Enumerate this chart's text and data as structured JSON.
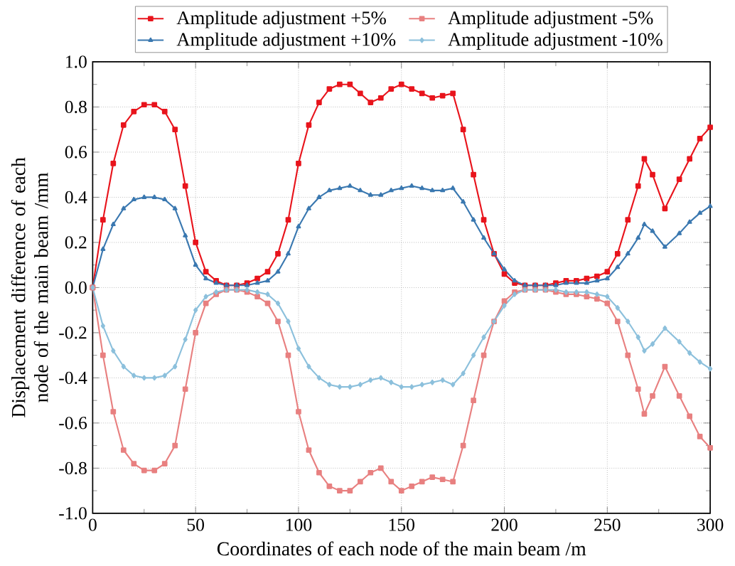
{
  "chart_data": {
    "type": "line",
    "xlabel": "Coordinates of each node of the main beam /m",
    "ylabel": "Displacement difference of each node of the main beam /mm",
    "x": [
      0,
      5,
      10,
      15,
      20,
      25,
      30,
      35,
      40,
      45,
      50,
      55,
      60,
      65,
      70,
      75,
      80,
      85,
      90,
      95,
      100,
      105,
      110,
      115,
      120,
      125,
      130,
      135,
      140,
      145,
      150,
      155,
      160,
      165,
      170,
      175,
      180,
      185,
      190,
      195,
      200,
      205,
      210,
      215,
      220,
      225,
      230,
      235,
      240,
      245,
      250,
      255,
      260,
      265,
      268,
      272,
      278,
      285,
      290,
      295,
      300
    ],
    "series": [
      {
        "name": "Amplitude adjustment +5%",
        "color": "#e8141c",
        "marker": "square",
        "values": [
          0,
          0.3,
          0.55,
          0.72,
          0.78,
          0.81,
          0.81,
          0.78,
          0.7,
          0.45,
          0.2,
          0.07,
          0.03,
          0.01,
          0.01,
          0.02,
          0.04,
          0.07,
          0.15,
          0.3,
          0.55,
          0.72,
          0.82,
          0.88,
          0.9,
          0.9,
          0.86,
          0.82,
          0.84,
          0.88,
          0.9,
          0.88,
          0.86,
          0.84,
          0.85,
          0.86,
          0.7,
          0.5,
          0.3,
          0.15,
          0.06,
          0.02,
          0.01,
          0.01,
          0.01,
          0.02,
          0.03,
          0.03,
          0.04,
          0.05,
          0.07,
          0.15,
          0.3,
          0.45,
          0.57,
          0.5,
          0.35,
          0.48,
          0.57,
          0.66,
          0.71
        ]
      },
      {
        "name": "Amplitude adjustment +10%",
        "color": "#3a78b0",
        "marker": "triangle",
        "values": [
          0,
          0.17,
          0.28,
          0.35,
          0.39,
          0.4,
          0.4,
          0.39,
          0.35,
          0.23,
          0.1,
          0.04,
          0.02,
          0.01,
          0.01,
          0.01,
          0.02,
          0.03,
          0.07,
          0.15,
          0.27,
          0.35,
          0.4,
          0.43,
          0.44,
          0.45,
          0.43,
          0.41,
          0.41,
          0.43,
          0.44,
          0.45,
          0.44,
          0.43,
          0.43,
          0.44,
          0.38,
          0.3,
          0.22,
          0.15,
          0.08,
          0.03,
          0.01,
          0.01,
          0.01,
          0.01,
          0.02,
          0.02,
          0.02,
          0.03,
          0.04,
          0.09,
          0.15,
          0.22,
          0.28,
          0.25,
          0.18,
          0.24,
          0.29,
          0.33,
          0.36
        ]
      },
      {
        "name": "Amplitude adjustment -5%",
        "color": "#e88080",
        "marker": "square",
        "values": [
          0,
          -0.3,
          -0.55,
          -0.72,
          -0.78,
          -0.81,
          -0.81,
          -0.78,
          -0.7,
          -0.45,
          -0.2,
          -0.07,
          -0.03,
          -0.01,
          -0.01,
          -0.02,
          -0.04,
          -0.07,
          -0.15,
          -0.3,
          -0.55,
          -0.72,
          -0.82,
          -0.88,
          -0.9,
          -0.9,
          -0.86,
          -0.82,
          -0.8,
          -0.86,
          -0.9,
          -0.88,
          -0.86,
          -0.84,
          -0.85,
          -0.86,
          -0.7,
          -0.5,
          -0.3,
          -0.15,
          -0.06,
          -0.02,
          -0.01,
          -0.01,
          -0.01,
          -0.02,
          -0.03,
          -0.03,
          -0.04,
          -0.05,
          -0.07,
          -0.15,
          -0.3,
          -0.45,
          -0.56,
          -0.48,
          -0.35,
          -0.48,
          -0.57,
          -0.66,
          -0.71
        ]
      },
      {
        "name": "Amplitude adjustment -10%",
        "color": "#8cc0dc",
        "marker": "diamond",
        "values": [
          0,
          -0.17,
          -0.28,
          -0.35,
          -0.39,
          -0.4,
          -0.4,
          -0.39,
          -0.35,
          -0.23,
          -0.1,
          -0.04,
          -0.02,
          -0.01,
          -0.01,
          -0.01,
          -0.02,
          -0.03,
          -0.07,
          -0.15,
          -0.27,
          -0.35,
          -0.4,
          -0.43,
          -0.44,
          -0.44,
          -0.43,
          -0.41,
          -0.4,
          -0.42,
          -0.44,
          -0.44,
          -0.43,
          -0.42,
          -0.41,
          -0.43,
          -0.38,
          -0.3,
          -0.22,
          -0.15,
          -0.08,
          -0.03,
          -0.01,
          -0.01,
          -0.01,
          -0.01,
          -0.02,
          -0.02,
          -0.02,
          -0.03,
          -0.04,
          -0.09,
          -0.15,
          -0.22,
          -0.28,
          -0.25,
          -0.18,
          -0.24,
          -0.29,
          -0.33,
          -0.36
        ]
      }
    ],
    "xlim": [
      0,
      300
    ],
    "xticks": [
      0,
      50,
      100,
      150,
      200,
      250,
      300
    ],
    "ylim": [
      -1,
      1
    ],
    "yticks": [
      {
        "value": -1,
        "label": "-1.0"
      },
      {
        "value": -0.8,
        "label": "-0.8"
      },
      {
        "value": -0.6,
        "label": "-0.6"
      },
      {
        "value": -0.4,
        "label": "-0.4"
      },
      {
        "value": -0.2,
        "label": "-0.2"
      },
      {
        "value": 0,
        "label": "0.0"
      },
      {
        "value": 0.2,
        "label": "0.2"
      },
      {
        "value": 0.4,
        "label": "0.4"
      },
      {
        "value": 0.6,
        "label": "0.6"
      },
      {
        "value": 0.8,
        "label": "0.8"
      },
      {
        "value": 1,
        "label": "1.0"
      }
    ],
    "grid": true,
    "legend": "top",
    "line_style": "solid"
  }
}
